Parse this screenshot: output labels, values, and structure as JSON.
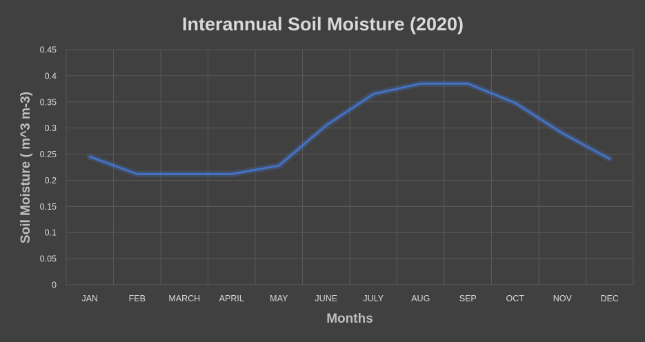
{
  "chart_data": {
    "type": "line",
    "title": "Interannual Soil Moisture (2020)",
    "xlabel": "Months",
    "ylabel": "Soil Moisture ( m^3 m-3)",
    "categories": [
      "JAN",
      "FEB",
      "MARCH",
      "APRIL",
      "MAY",
      "JUNE",
      "JULY",
      "AUG",
      "SEP",
      "OCT",
      "NOV",
      "DEC"
    ],
    "series": [
      {
        "values": [
          0.245,
          0.212,
          0.212,
          0.212,
          0.228,
          0.305,
          0.365,
          0.385,
          0.385,
          0.348,
          0.29,
          0.241
        ],
        "color": "#4472c4"
      }
    ],
    "ylim": [
      0,
      0.45
    ],
    "yticks": [
      "0",
      "0.05",
      "0.1",
      "0.15",
      "0.2",
      "0.25",
      "0.3",
      "0.35",
      "0.4",
      "0.45"
    ],
    "grid": true,
    "legend": "none",
    "colors": {
      "background": "#404040",
      "gridline": "#595959",
      "text": "#d9d9d9",
      "axis_title": "#bfbfbf"
    }
  }
}
